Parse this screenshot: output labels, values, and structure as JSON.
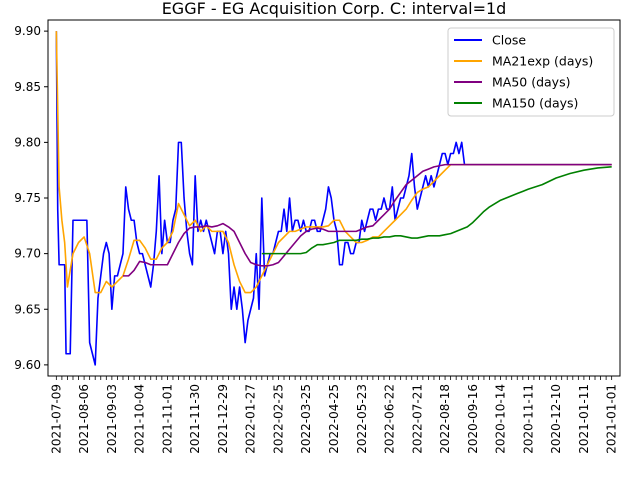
{
  "chart_data": {
    "type": "line",
    "title": "EGGF - EG Acquisition Corp. C: interval=1d",
    "xlabel": "",
    "ylabel": "",
    "ylim": [
      9.59,
      9.91
    ],
    "yticks": [
      9.6,
      9.65,
      9.7,
      9.75,
      9.8,
      9.85,
      9.9
    ],
    "ytick_labels": [
      "9.60",
      "9.65",
      "9.70",
      "9.75",
      "9.80",
      "9.85",
      "9.90"
    ],
    "xtick_labels": [
      "2021-07-09",
      "2021-08-06",
      "2021-09-03",
      "2021-10-04",
      "2021-11-01",
      "2021-11-30",
      "2021-12-29",
      "2022-01-27",
      "2022-02-25",
      "2022-03-25",
      "2022-04-25",
      "2022-05-23",
      "2022-06-22",
      "2022-07-21",
      "2022-08-18",
      "2020-09-16",
      "2020-10-14",
      "2020-11-11",
      "2020-12-10",
      "2021-01-11",
      "2021-01-01"
    ],
    "xlim": [
      -3,
      203
    ],
    "grid": false,
    "legend": {
      "position": "top-right"
    },
    "series": [
      {
        "name": "Close",
        "color": "#0000ff",
        "x": [
          0,
          0.5,
          1,
          2,
          3,
          3.5,
          4,
          5,
          6,
          7,
          8,
          9,
          10,
          11,
          12,
          13,
          14,
          15,
          16,
          17,
          18,
          19,
          20,
          21,
          22,
          23,
          24,
          25,
          26,
          27,
          28,
          29,
          30,
          31,
          32,
          33,
          34,
          35,
          36,
          37,
          38,
          39,
          40,
          41,
          42,
          43,
          44,
          45,
          46,
          47,
          48,
          49,
          50,
          51,
          52,
          53,
          54,
          55,
          56,
          57,
          58,
          59,
          60,
          61,
          62,
          63,
          64,
          65,
          66,
          67,
          68,
          69,
          70,
          71,
          72,
          73,
          74,
          75,
          76,
          77,
          78,
          79,
          80,
          81,
          82,
          83,
          84,
          85,
          86,
          87,
          88,
          89,
          90,
          91,
          92,
          93,
          94,
          95,
          96,
          97,
          98,
          99,
          100,
          101,
          102,
          103,
          104,
          105,
          106,
          107,
          108,
          109,
          110,
          111,
          112,
          113,
          114,
          115,
          116,
          117,
          118,
          119,
          120,
          121,
          122,
          123,
          124,
          125,
          126,
          127,
          128,
          129,
          130,
          131,
          132,
          133,
          134,
          135,
          136,
          137,
          138,
          139,
          140,
          141,
          142,
          143,
          144,
          145,
          146,
          147,
          148,
          149,
          150,
          151,
          152,
          153,
          154,
          155,
          156,
          200
        ],
        "y": [
          9.9,
          9.74,
          9.69,
          9.69,
          9.69,
          9.61,
          9.61,
          9.61,
          9.73,
          9.73,
          9.73,
          9.73,
          9.73,
          9.73,
          9.62,
          9.61,
          9.6,
          9.66,
          9.68,
          9.7,
          9.71,
          9.7,
          9.65,
          9.68,
          9.68,
          9.69,
          9.7,
          9.76,
          9.74,
          9.73,
          9.73,
          9.71,
          9.7,
          9.7,
          9.69,
          9.68,
          9.67,
          9.69,
          9.72,
          9.77,
          9.7,
          9.73,
          9.71,
          9.71,
          9.73,
          9.74,
          9.8,
          9.8,
          9.75,
          9.72,
          9.7,
          9.69,
          9.77,
          9.72,
          9.73,
          9.72,
          9.73,
          9.72,
          9.71,
          9.7,
          9.72,
          9.72,
          9.7,
          9.72,
          9.7,
          9.65,
          9.67,
          9.65,
          9.67,
          9.65,
          9.62,
          9.64,
          9.65,
          9.66,
          9.7,
          9.65,
          9.75,
          9.68,
          9.69,
          9.7,
          9.7,
          9.71,
          9.72,
          9.72,
          9.74,
          9.72,
          9.75,
          9.72,
          9.73,
          9.73,
          9.72,
          9.73,
          9.72,
          9.72,
          9.73,
          9.73,
          9.72,
          9.72,
          9.73,
          9.74,
          9.76,
          9.75,
          9.73,
          9.72,
          9.69,
          9.69,
          9.71,
          9.71,
          9.7,
          9.7,
          9.71,
          9.71,
          9.73,
          9.72,
          9.73,
          9.74,
          9.74,
          9.73,
          9.74,
          9.74,
          9.75,
          9.74,
          9.74,
          9.76,
          9.73,
          9.74,
          9.75,
          9.75,
          9.76,
          9.77,
          9.79,
          9.76,
          9.74,
          9.75,
          9.76,
          9.77,
          9.76,
          9.77,
          9.76,
          9.77,
          9.78,
          9.79,
          9.79,
          9.78,
          9.79,
          9.79,
          9.8,
          9.79,
          9.8,
          9.78,
          9.78,
          9.78,
          9.78,
          9.78,
          9.78,
          9.78,
          9.78,
          9.78,
          9.78,
          9.78
        ]
      },
      {
        "name": "MA21exp (days)",
        "color": "#ffa500",
        "x": [
          0,
          1,
          2,
          3,
          4,
          5,
          6,
          8,
          10,
          12,
          14,
          16,
          18,
          20,
          22,
          24,
          26,
          28,
          30,
          32,
          34,
          36,
          38,
          40,
          42,
          44,
          46,
          48,
          50,
          52,
          54,
          56,
          58,
          60,
          62,
          64,
          66,
          68,
          70,
          72,
          74,
          76,
          78,
          80,
          82,
          84,
          86,
          88,
          90,
          92,
          94,
          96,
          98,
          100,
          102,
          104,
          106,
          108,
          110,
          112,
          114,
          116,
          118,
          120,
          122,
          124,
          126,
          128,
          130,
          132,
          134,
          136,
          138,
          140,
          142,
          144,
          146,
          148,
          150,
          152,
          154,
          156,
          160,
          170,
          180,
          190,
          200
        ],
        "y": [
          9.9,
          9.76,
          9.73,
          9.71,
          9.67,
          9.685,
          9.7,
          9.71,
          9.715,
          9.7,
          9.665,
          9.665,
          9.675,
          9.67,
          9.675,
          9.68,
          9.695,
          9.712,
          9.712,
          9.705,
          9.695,
          9.695,
          9.705,
          9.71,
          9.72,
          9.745,
          9.735,
          9.725,
          9.73,
          9.72,
          9.725,
          9.72,
          9.72,
          9.72,
          9.71,
          9.69,
          9.675,
          9.665,
          9.665,
          9.67,
          9.68,
          9.69,
          9.7,
          9.71,
          9.715,
          9.72,
          9.72,
          9.722,
          9.724,
          9.724,
          9.724,
          9.724,
          9.725,
          9.73,
          9.73,
          9.72,
          9.715,
          9.71,
          9.71,
          9.712,
          9.715,
          9.715,
          9.72,
          9.725,
          9.73,
          9.735,
          9.74,
          9.748,
          9.755,
          9.758,
          9.76,
          9.765,
          9.77,
          9.775,
          9.78,
          9.78,
          9.78,
          9.78,
          9.78,
          9.78,
          9.78,
          9.78,
          9.78,
          9.78,
          9.78,
          9.78,
          9.78
        ]
      },
      {
        "name": "MA50 (days)",
        "color": "#800080",
        "x": [
          24,
          26,
          28,
          30,
          32,
          34,
          36,
          38,
          40,
          42,
          44,
          46,
          48,
          50,
          52,
          54,
          56,
          58,
          60,
          62,
          64,
          66,
          68,
          70,
          72,
          74,
          76,
          78,
          80,
          82,
          84,
          86,
          88,
          90,
          92,
          94,
          96,
          98,
          100,
          102,
          104,
          106,
          108,
          110,
          112,
          114,
          116,
          118,
          120,
          122,
          124,
          126,
          128,
          130,
          132,
          134,
          136,
          138,
          140,
          142,
          144,
          146,
          148,
          150,
          152,
          154,
          156,
          158,
          160,
          162,
          164,
          166,
          168,
          170,
          180,
          190,
          200
        ],
        "y": [
          9.68,
          9.68,
          9.685,
          9.693,
          9.692,
          9.69,
          9.69,
          9.69,
          9.69,
          9.7,
          9.71,
          9.718,
          9.723,
          9.724,
          9.724,
          9.725,
          9.724,
          9.725,
          9.727,
          9.724,
          9.72,
          9.71,
          9.7,
          9.692,
          9.69,
          9.689,
          9.689,
          9.69,
          9.692,
          9.698,
          9.704,
          9.71,
          9.716,
          9.72,
          9.722,
          9.723,
          9.722,
          9.72,
          9.72,
          9.72,
          9.72,
          9.72,
          9.72,
          9.722,
          9.724,
          9.725,
          9.73,
          9.735,
          9.74,
          9.748,
          9.755,
          9.762,
          9.766,
          9.77,
          9.774,
          9.776,
          9.778,
          9.779,
          9.78,
          9.78,
          9.78,
          9.78,
          9.78,
          9.78,
          9.78,
          9.78,
          9.78,
          9.78,
          9.78,
          9.78,
          9.78,
          9.78,
          9.78,
          9.78,
          9.78,
          9.78,
          9.78
        ]
      },
      {
        "name": "MA150 (days)",
        "color": "#008000",
        "x": [
          74,
          76,
          78,
          80,
          82,
          84,
          86,
          88,
          90,
          92,
          94,
          96,
          98,
          100,
          102,
          104,
          106,
          108,
          110,
          112,
          114,
          116,
          118,
          120,
          122,
          124,
          126,
          128,
          130,
          132,
          134,
          136,
          138,
          140,
          142,
          144,
          146,
          148,
          150,
          152,
          154,
          156,
          158,
          160,
          162,
          164,
          166,
          168,
          170,
          175,
          180,
          185,
          190,
          195,
          200
        ],
        "y": [
          9.7,
          9.7,
          9.7,
          9.7,
          9.7,
          9.7,
          9.7,
          9.7,
          9.701,
          9.705,
          9.708,
          9.708,
          9.709,
          9.71,
          9.712,
          9.712,
          9.712,
          9.712,
          9.713,
          9.713,
          9.714,
          9.714,
          9.715,
          9.715,
          9.716,
          9.716,
          9.715,
          9.714,
          9.714,
          9.715,
          9.716,
          9.716,
          9.716,
          9.717,
          9.718,
          9.72,
          9.722,
          9.724,
          9.728,
          9.733,
          9.738,
          9.742,
          9.745,
          9.748,
          9.75,
          9.752,
          9.754,
          9.756,
          9.758,
          9.762,
          9.768,
          9.772,
          9.775,
          9.777,
          9.778
        ]
      }
    ]
  }
}
